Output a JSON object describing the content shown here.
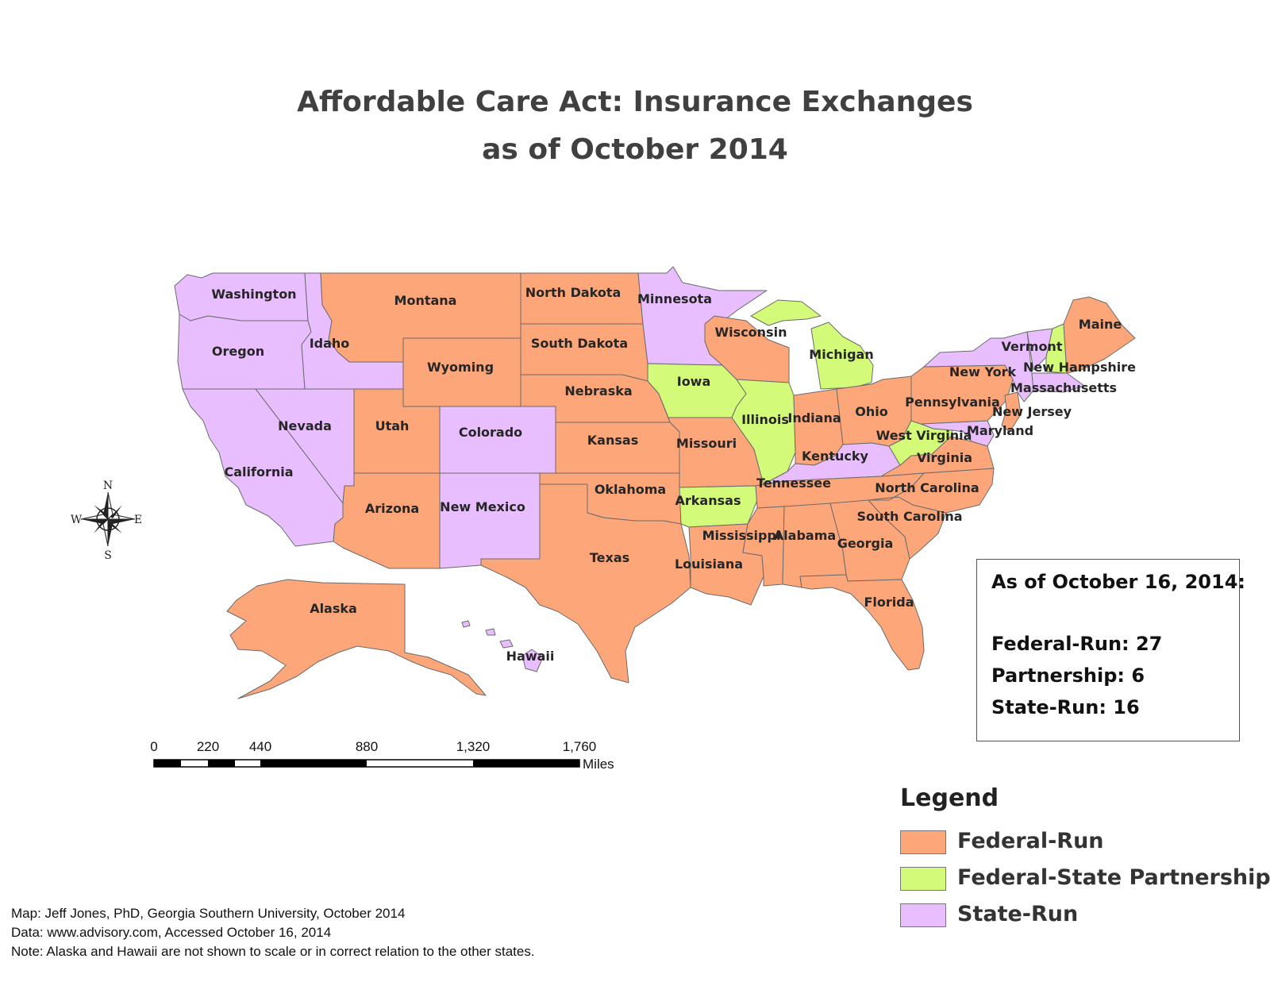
{
  "title": {
    "line1": "Affordable Care Act:  Insurance Exchanges",
    "line2": "as of October 2014"
  },
  "colors": {
    "federal": "#FDA679",
    "partnership": "#D3FA78",
    "state": "#E8BEFE",
    "border": "#6b6b6b"
  },
  "states": {
    "washington": {
      "name": "Washington",
      "status": "state"
    },
    "oregon": {
      "name": "Oregon",
      "status": "state"
    },
    "idaho": {
      "name": "Idaho",
      "status": "state"
    },
    "california": {
      "name": "California",
      "status": "state"
    },
    "nevada": {
      "name": "Nevada",
      "status": "state"
    },
    "montana": {
      "name": "Montana",
      "status": "federal"
    },
    "wyoming": {
      "name": "Wyoming",
      "status": "federal"
    },
    "utah": {
      "name": "Utah",
      "status": "federal"
    },
    "colorado": {
      "name": "Colorado",
      "status": "state"
    },
    "arizona": {
      "name": "Arizona",
      "status": "federal"
    },
    "new_mexico": {
      "name": "New Mexico",
      "status": "state"
    },
    "north_dakota": {
      "name": "North Dakota",
      "status": "federal"
    },
    "south_dakota": {
      "name": "South Dakota",
      "status": "federal"
    },
    "nebraska": {
      "name": "Nebraska",
      "status": "federal"
    },
    "kansas": {
      "name": "Kansas",
      "status": "federal"
    },
    "oklahoma": {
      "name": "Oklahoma",
      "status": "federal"
    },
    "texas": {
      "name": "Texas",
      "status": "federal"
    },
    "minnesota": {
      "name": "Minnesota",
      "status": "state"
    },
    "iowa": {
      "name": "Iowa",
      "status": "partnership"
    },
    "missouri": {
      "name": "Missouri",
      "status": "federal"
    },
    "arkansas": {
      "name": "Arkansas",
      "status": "partnership"
    },
    "louisiana": {
      "name": "Louisiana",
      "status": "federal"
    },
    "wisconsin": {
      "name": "Wisconsin",
      "status": "federal"
    },
    "illinois": {
      "name": "Illinois",
      "status": "partnership"
    },
    "michigan": {
      "name": "Michigan",
      "status": "partnership"
    },
    "indiana": {
      "name": "Indiana",
      "status": "federal"
    },
    "ohio": {
      "name": "Ohio",
      "status": "federal"
    },
    "kentucky": {
      "name": "Kentucky",
      "status": "state"
    },
    "tennessee": {
      "name": "Tennessee",
      "status": "federal"
    },
    "mississippi": {
      "name": "Mississippi",
      "status": "federal"
    },
    "alabama": {
      "name": "Alabama",
      "status": "federal"
    },
    "georgia": {
      "name": "Georgia",
      "status": "federal"
    },
    "florida": {
      "name": "Florida",
      "status": "federal"
    },
    "south_carolina": {
      "name": "South Carolina",
      "status": "federal"
    },
    "north_carolina": {
      "name": "North Carolina",
      "status": "federal"
    },
    "virginia": {
      "name": "Virginia",
      "status": "federal"
    },
    "west_virginia": {
      "name": "West Virginia",
      "status": "partnership"
    },
    "maryland": {
      "name": "Maryland",
      "status": "state"
    },
    "pennsylvania": {
      "name": "Pennsylvania",
      "status": "federal"
    },
    "new_jersey": {
      "name": "New Jersey",
      "status": "federal"
    },
    "new_york": {
      "name": "New York",
      "status": "state"
    },
    "vermont": {
      "name": "Vermont",
      "status": "state"
    },
    "new_hampshire": {
      "name": "New Hampshire",
      "status": "partnership"
    },
    "massachusetts": {
      "name": "Massachusetts",
      "status": "state"
    },
    "maine": {
      "name": "Maine",
      "status": "federal"
    },
    "alaska": {
      "name": "Alaska",
      "status": "federal"
    },
    "hawaii": {
      "name": "Hawaii",
      "status": "state"
    }
  },
  "compass": {
    "n": "N",
    "s": "S",
    "e": "E",
    "w": "W"
  },
  "scale_bar": {
    "ticks": [
      "0",
      "220",
      "440",
      "880",
      "1,320",
      "1,760"
    ],
    "unit": "Miles"
  },
  "stats_box": {
    "heading": "As of October 16, 2014:",
    "federal": "Federal-Run:  27",
    "partnership": "Partnership:  6",
    "state": "State-Run:  16"
  },
  "legend": {
    "title": "Legend",
    "items": [
      {
        "label": "Federal-Run",
        "color": "#FDA679"
      },
      {
        "label": "Federal-State Partnership",
        "color": "#D3FA78"
      },
      {
        "label": "State-Run",
        "color": "#E8BEFE"
      }
    ]
  },
  "credits": {
    "map": "Map:  Jeff Jones, PhD, Georgia Southern University, October 2014",
    "data": "Data:  www.advisory.com, Accessed October 16, 2014",
    "note": "Note:  Alaska and Hawaii are not shown to scale or in correct relation to the other states."
  }
}
